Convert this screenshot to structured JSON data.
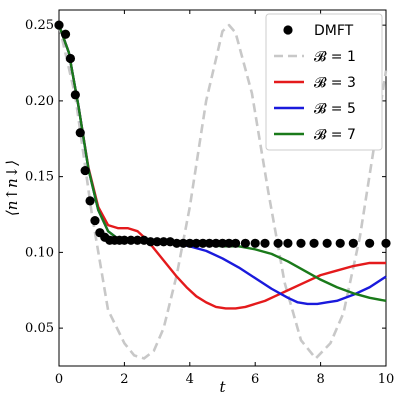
{
  "chart_data": {
    "type": "line",
    "xlabel": "t",
    "ylabel": "⟨n↑n↓⟩",
    "xlim": [
      0,
      10
    ],
    "ylim": [
      0.025,
      0.26
    ],
    "x_ticks": [
      0,
      2,
      4,
      6,
      8,
      10
    ],
    "y_ticks": [
      0.05,
      0.1,
      0.15,
      0.2,
      0.25
    ],
    "y_tick_labels": [
      "0.05",
      "0.10",
      "0.15",
      "0.20",
      "0.25"
    ],
    "legend_position": "top-right",
    "grid": false,
    "series": [
      {
        "name": "DMFT",
        "style": "markers",
        "color": "#000000",
        "x": [
          0.0,
          0.2,
          0.35,
          0.5,
          0.65,
          0.8,
          0.95,
          1.1,
          1.25,
          1.4,
          1.55,
          1.7,
          1.85,
          2.0,
          2.2,
          2.4,
          2.6,
          2.8,
          3.0,
          3.2,
          3.4,
          3.6,
          3.8,
          4.0,
          4.2,
          4.4,
          4.6,
          4.8,
          5.0,
          5.2,
          5.4,
          5.7,
          6.0,
          6.3,
          6.7,
          7.0,
          7.4,
          7.8,
          8.2,
          8.6,
          9.0,
          9.5,
          10.0
        ],
        "y": [
          0.25,
          0.244,
          0.228,
          0.204,
          0.179,
          0.154,
          0.134,
          0.121,
          0.113,
          0.11,
          0.108,
          0.108,
          0.108,
          0.108,
          0.108,
          0.108,
          0.108,
          0.107,
          0.107,
          0.107,
          0.107,
          0.106,
          0.106,
          0.106,
          0.106,
          0.106,
          0.106,
          0.106,
          0.106,
          0.106,
          0.106,
          0.106,
          0.106,
          0.106,
          0.106,
          0.106,
          0.106,
          0.106,
          0.106,
          0.106,
          0.106,
          0.106,
          0.106
        ]
      },
      {
        "name": "𝓑 = 1",
        "style": "dashed",
        "color": "#c8c8c8",
        "x": [
          0.0,
          0.5,
          1.0,
          1.5,
          2.0,
          2.3,
          2.6,
          2.9,
          3.2,
          3.6,
          4.0,
          4.5,
          5.0,
          5.2,
          5.4,
          5.9,
          6.4,
          6.9,
          7.4,
          7.85,
          8.3,
          8.7,
          9.2,
          9.6,
          10.0
        ],
        "y": [
          0.25,
          0.203,
          0.126,
          0.062,
          0.04,
          0.032,
          0.03,
          0.035,
          0.05,
          0.085,
          0.13,
          0.2,
          0.246,
          0.25,
          0.245,
          0.205,
          0.14,
          0.08,
          0.042,
          0.03,
          0.04,
          0.06,
          0.11,
          0.165,
          0.22
        ]
      },
      {
        "name": "𝓑 = 3",
        "style": "solid",
        "color": "#e41a1c",
        "x": [
          0.0,
          0.3,
          0.6,
          0.9,
          1.2,
          1.5,
          1.8,
          2.1,
          2.4,
          2.7,
          3.0,
          3.3,
          3.6,
          3.9,
          4.2,
          4.5,
          4.8,
          5.1,
          5.4,
          5.7,
          6.0,
          6.3,
          6.6,
          7.0,
          7.5,
          8.0,
          8.5,
          9.0,
          9.5,
          10.0
        ],
        "y": [
          0.25,
          0.232,
          0.196,
          0.156,
          0.13,
          0.118,
          0.116,
          0.116,
          0.114,
          0.108,
          0.1,
          0.092,
          0.084,
          0.077,
          0.071,
          0.067,
          0.064,
          0.063,
          0.063,
          0.064,
          0.066,
          0.068,
          0.071,
          0.075,
          0.08,
          0.085,
          0.088,
          0.091,
          0.093,
          0.093
        ]
      },
      {
        "name": "𝓑 = 5",
        "style": "solid",
        "color": "#1a1adc",
        "x": [
          0.0,
          0.3,
          0.6,
          0.9,
          1.2,
          1.5,
          1.8,
          2.1,
          2.5,
          3.0,
          3.5,
          4.0,
          4.5,
          5.0,
          5.5,
          6.0,
          6.5,
          7.0,
          7.3,
          7.6,
          7.9,
          8.2,
          8.5,
          9.0,
          9.5,
          10.0
        ],
        "y": [
          0.25,
          0.232,
          0.196,
          0.155,
          0.128,
          0.114,
          0.109,
          0.108,
          0.108,
          0.107,
          0.106,
          0.104,
          0.101,
          0.096,
          0.09,
          0.083,
          0.076,
          0.07,
          0.067,
          0.066,
          0.066,
          0.067,
          0.068,
          0.072,
          0.077,
          0.084
        ]
      },
      {
        "name": "𝓑 = 7",
        "style": "solid",
        "color": "#1a7a1a",
        "x": [
          0.0,
          0.3,
          0.6,
          0.9,
          1.2,
          1.5,
          1.8,
          2.1,
          2.5,
          3.0,
          3.5,
          4.0,
          4.5,
          5.0,
          5.5,
          6.0,
          6.5,
          7.0,
          7.5,
          8.0,
          8.5,
          9.0,
          9.5,
          10.0
        ],
        "y": [
          0.25,
          0.232,
          0.196,
          0.155,
          0.128,
          0.114,
          0.109,
          0.108,
          0.108,
          0.107,
          0.106,
          0.105,
          0.105,
          0.104,
          0.104,
          0.102,
          0.099,
          0.094,
          0.088,
          0.082,
          0.077,
          0.073,
          0.07,
          0.068
        ]
      }
    ]
  }
}
